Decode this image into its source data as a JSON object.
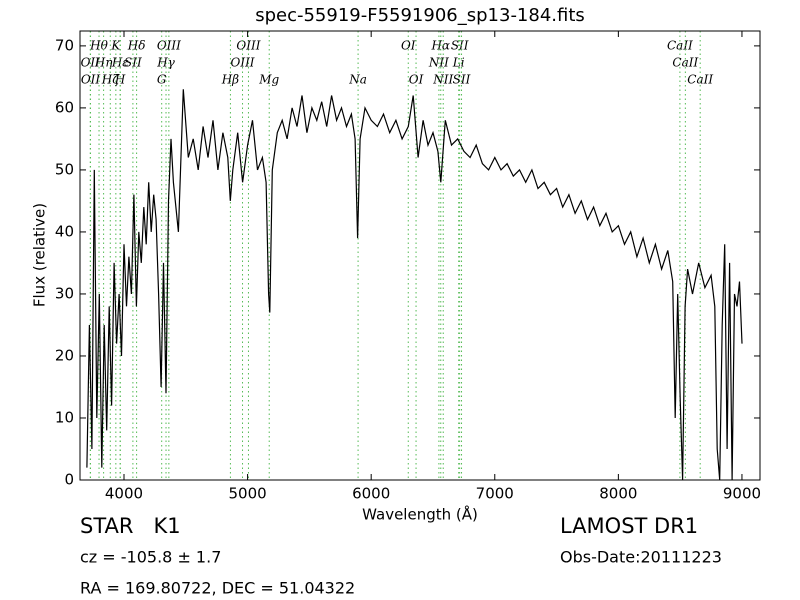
{
  "chart_data": {
    "type": "line",
    "title": "spec-55919-F5591906_sp13-184.fits",
    "xlabel": "Wavelength (Å)",
    "ylabel": "Flux (relative)",
    "color": "#000000",
    "xlim": [
      3644,
      9146
    ],
    "ylim": [
      0,
      72.4
    ],
    "xticks": [
      4000,
      5000,
      6000,
      7000,
      8000,
      9000
    ],
    "yticks": [
      0,
      10,
      20,
      30,
      40,
      50,
      60,
      70
    ],
    "x": [
      3700,
      3720,
      3740,
      3760,
      3780,
      3800,
      3820,
      3840,
      3860,
      3880,
      3900,
      3920,
      3940,
      3960,
      3980,
      4000,
      4020,
      4040,
      4060,
      4080,
      4100,
      4120,
      4140,
      4160,
      4180,
      4200,
      4220,
      4240,
      4260,
      4280,
      4300,
      4320,
      4340,
      4360,
      4380,
      4400,
      4440,
      4480,
      4520,
      4560,
      4600,
      4640,
      4680,
      4720,
      4760,
      4800,
      4840,
      4860,
      4880,
      4920,
      4960,
      5000,
      5040,
      5080,
      5120,
      5150,
      5170,
      5180,
      5200,
      5240,
      5280,
      5320,
      5360,
      5400,
      5440,
      5480,
      5520,
      5560,
      5600,
      5640,
      5680,
      5720,
      5760,
      5800,
      5840,
      5870,
      5890,
      5910,
      5950,
      6000,
      6050,
      6100,
      6150,
      6200,
      6250,
      6300,
      6340,
      6380,
      6420,
      6460,
      6500,
      6540,
      6563,
      6600,
      6650,
      6700,
      6750,
      6800,
      6850,
      6900,
      6950,
      7000,
      7050,
      7100,
      7150,
      7200,
      7250,
      7300,
      7350,
      7400,
      7450,
      7500,
      7550,
      7600,
      7650,
      7700,
      7750,
      7800,
      7850,
      7900,
      7950,
      8000,
      8050,
      8100,
      8150,
      8200,
      8250,
      8300,
      8350,
      8400,
      8440,
      8460,
      8480,
      8500,
      8520,
      8540,
      8560,
      8600,
      8650,
      8700,
      8750,
      8780,
      8800,
      8820,
      8840,
      8860,
      8880,
      8900,
      8920,
      8940,
      8960,
      8980,
      9000
    ],
    "values": [
      2,
      25,
      5,
      50,
      10,
      30,
      2,
      25,
      8,
      28,
      12,
      35,
      22,
      30,
      20,
      38,
      28,
      36,
      30,
      46,
      28,
      40,
      35,
      44,
      38,
      48,
      40,
      46,
      42,
      30,
      15,
      35,
      14,
      45,
      55,
      48,
      40,
      63,
      52,
      55,
      50,
      57,
      52,
      58,
      50,
      56,
      52,
      45,
      50,
      56,
      48,
      54,
      58,
      50,
      52,
      48,
      30,
      27,
      50,
      56,
      58,
      55,
      60,
      57,
      62,
      56,
      60,
      58,
      61,
      57,
      62,
      58,
      60,
      57,
      59,
      55,
      39,
      55,
      60,
      58,
      57,
      59,
      56,
      58,
      55,
      57,
      62,
      52,
      58,
      54,
      56,
      53,
      48,
      58,
      54,
      55,
      53,
      52,
      54,
      51,
      50,
      52,
      50,
      51,
      49,
      50,
      48,
      50,
      47,
      48,
      46,
      47,
      44,
      46,
      43,
      45,
      42,
      44,
      41,
      43,
      40,
      41,
      38,
      40,
      36,
      39,
      35,
      38,
      34,
      37,
      32,
      10,
      30,
      13,
      0,
      28,
      34,
      30,
      35,
      31,
      33,
      28,
      5,
      0,
      25,
      38,
      5,
      35,
      0,
      30,
      28,
      32,
      22
    ],
    "line_groups": [
      [
        {
          "label": "Hθ",
          "x": 3798
        },
        {
          "label": "K",
          "x": 3934
        },
        {
          "label": "Hδ",
          "x": 4102
        },
        {
          "label": "OIII",
          "x": 4363
        },
        {
          "label": "OIII",
          "x": 5007
        },
        {
          "label": "OI",
          "x": 6300
        },
        {
          "label": "Hα",
          "x": 6563
        },
        {
          "label": "SII",
          "x": 6716
        },
        {
          "label": "CaII",
          "x": 8498
        }
      ],
      [
        {
          "label": "OII",
          "x": 3727
        },
        {
          "label": "Hη",
          "x": 3835
        },
        {
          "label": "Hε",
          "x": 3970
        },
        {
          "label": "SII",
          "x": 4072
        },
        {
          "label": "Hγ",
          "x": 4340
        },
        {
          "label": "OIII",
          "x": 4959
        },
        {
          "label": "NII",
          "x": 6548
        },
        {
          "label": "Li",
          "x": 6708
        },
        {
          "label": "CaII",
          "x": 8542
        }
      ],
      [
        {
          "label": "OII",
          "x": 3729
        },
        {
          "label": "Hζ",
          "x": 3889
        },
        {
          "label": "H",
          "x": 3969
        },
        {
          "label": "G",
          "x": 4305
        },
        {
          "label": "Hβ",
          "x": 4861
        },
        {
          "label": "Mg",
          "x": 5175
        },
        {
          "label": "Na",
          "x": 5894
        },
        {
          "label": "OI",
          "x": 6363
        },
        {
          "label": "NII",
          "x": 6583
        },
        {
          "label": "SII",
          "x": 6731
        },
        {
          "label": "CaII",
          "x": 8662
        }
      ]
    ]
  },
  "info": {
    "class": "STAR   K1",
    "cz": "cz = -105.8 ± 1.7",
    "coords": "RA = 169.80722, DEC = 51.04322",
    "survey": "LAMOST DR1",
    "date": "Obs-Date:20111223"
  }
}
